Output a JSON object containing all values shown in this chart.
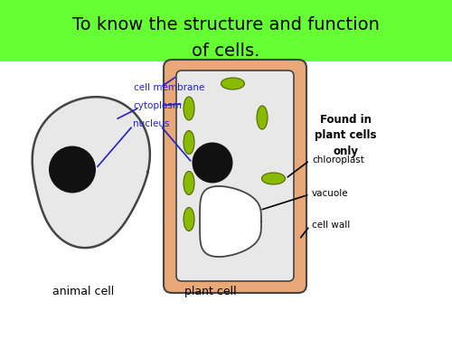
{
  "title_line1": "To know the structure and function",
  "title_line2": "of cells.",
  "title_bg": "#66ff33",
  "title_text_color": "#000000",
  "title_fontsize": 14,
  "bg_color": "#ffffff",
  "animal_label": "animal cell",
  "plant_label": "plant cell",
  "nucleus_label": "nucleus",
  "cytoplasm_label": "cytoplasm",
  "membrane_label": "cell membrane",
  "found_label": "Found in\nplant cells\nonly",
  "chloroplast_label": "chloroplast",
  "vacuole_label": "vacuole",
  "cell_wall_label": "cell wall",
  "label_color": "#2222cc",
  "black_label_color": "#000000",
  "cell_fill": "#e8e8e8",
  "cell_outline": "#444444",
  "nucleus_fill": "#111111",
  "chloroplast_fill": "#88bb00",
  "plant_wall_color": "#e8a878",
  "vacuole_fill": "#ffffff"
}
